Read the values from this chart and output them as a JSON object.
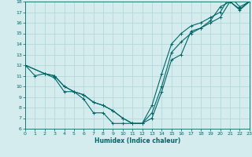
{
  "xlabel": "Humidex (Indice chaleur)",
  "bg_color": "#d4ecee",
  "line_color": "#006666",
  "grid_color": "#afd4d8",
  "xlim": [
    0,
    23
  ],
  "ylim": [
    6,
    18
  ],
  "xticks": [
    0,
    1,
    2,
    3,
    4,
    5,
    6,
    7,
    8,
    9,
    10,
    11,
    12,
    13,
    14,
    15,
    16,
    17,
    18,
    19,
    20,
    21,
    22,
    23
  ],
  "yticks": [
    6,
    7,
    8,
    9,
    10,
    11,
    12,
    13,
    14,
    15,
    16,
    17,
    18
  ],
  "line1_x": [
    0,
    1,
    2,
    3,
    4,
    5,
    6,
    7,
    8,
    9,
    10,
    11,
    12,
    13,
    14,
    15,
    16,
    17,
    18,
    19,
    20,
    21,
    22,
    23
  ],
  "line1_y": [
    12,
    11,
    11.2,
    10.8,
    9.5,
    9.5,
    8.8,
    7.5,
    7.5,
    6.5,
    6.5,
    6.5,
    6.5,
    7.0,
    9.5,
    12.5,
    13.0,
    15.2,
    15.5,
    16.2,
    17.5,
    18.0,
    17.3,
    18.0
  ],
  "line2_x": [
    0,
    2,
    3,
    4,
    5,
    6,
    7,
    8,
    9,
    10,
    11,
    12,
    13,
    14,
    15,
    16,
    17,
    18,
    19,
    20,
    21,
    22,
    23
  ],
  "line2_y": [
    12,
    11.2,
    11.0,
    10.0,
    9.5,
    9.2,
    8.5,
    8.2,
    7.7,
    7.0,
    6.5,
    6.5,
    7.5,
    10.0,
    13.2,
    14.2,
    15.0,
    15.5,
    16.0,
    16.5,
    18.0,
    17.2,
    18.0
  ],
  "line3_x": [
    0,
    2,
    3,
    4,
    5,
    6,
    7,
    8,
    9,
    10,
    11,
    12,
    13,
    14,
    15,
    16,
    17,
    18,
    19,
    20,
    21,
    22,
    23
  ],
  "line3_y": [
    12,
    11.2,
    11.0,
    10.0,
    9.5,
    9.2,
    8.5,
    8.2,
    7.7,
    7.0,
    6.5,
    6.5,
    8.2,
    11.2,
    14.0,
    15.0,
    15.7,
    16.0,
    16.5,
    17.0,
    18.5,
    17.5,
    18.0
  ]
}
